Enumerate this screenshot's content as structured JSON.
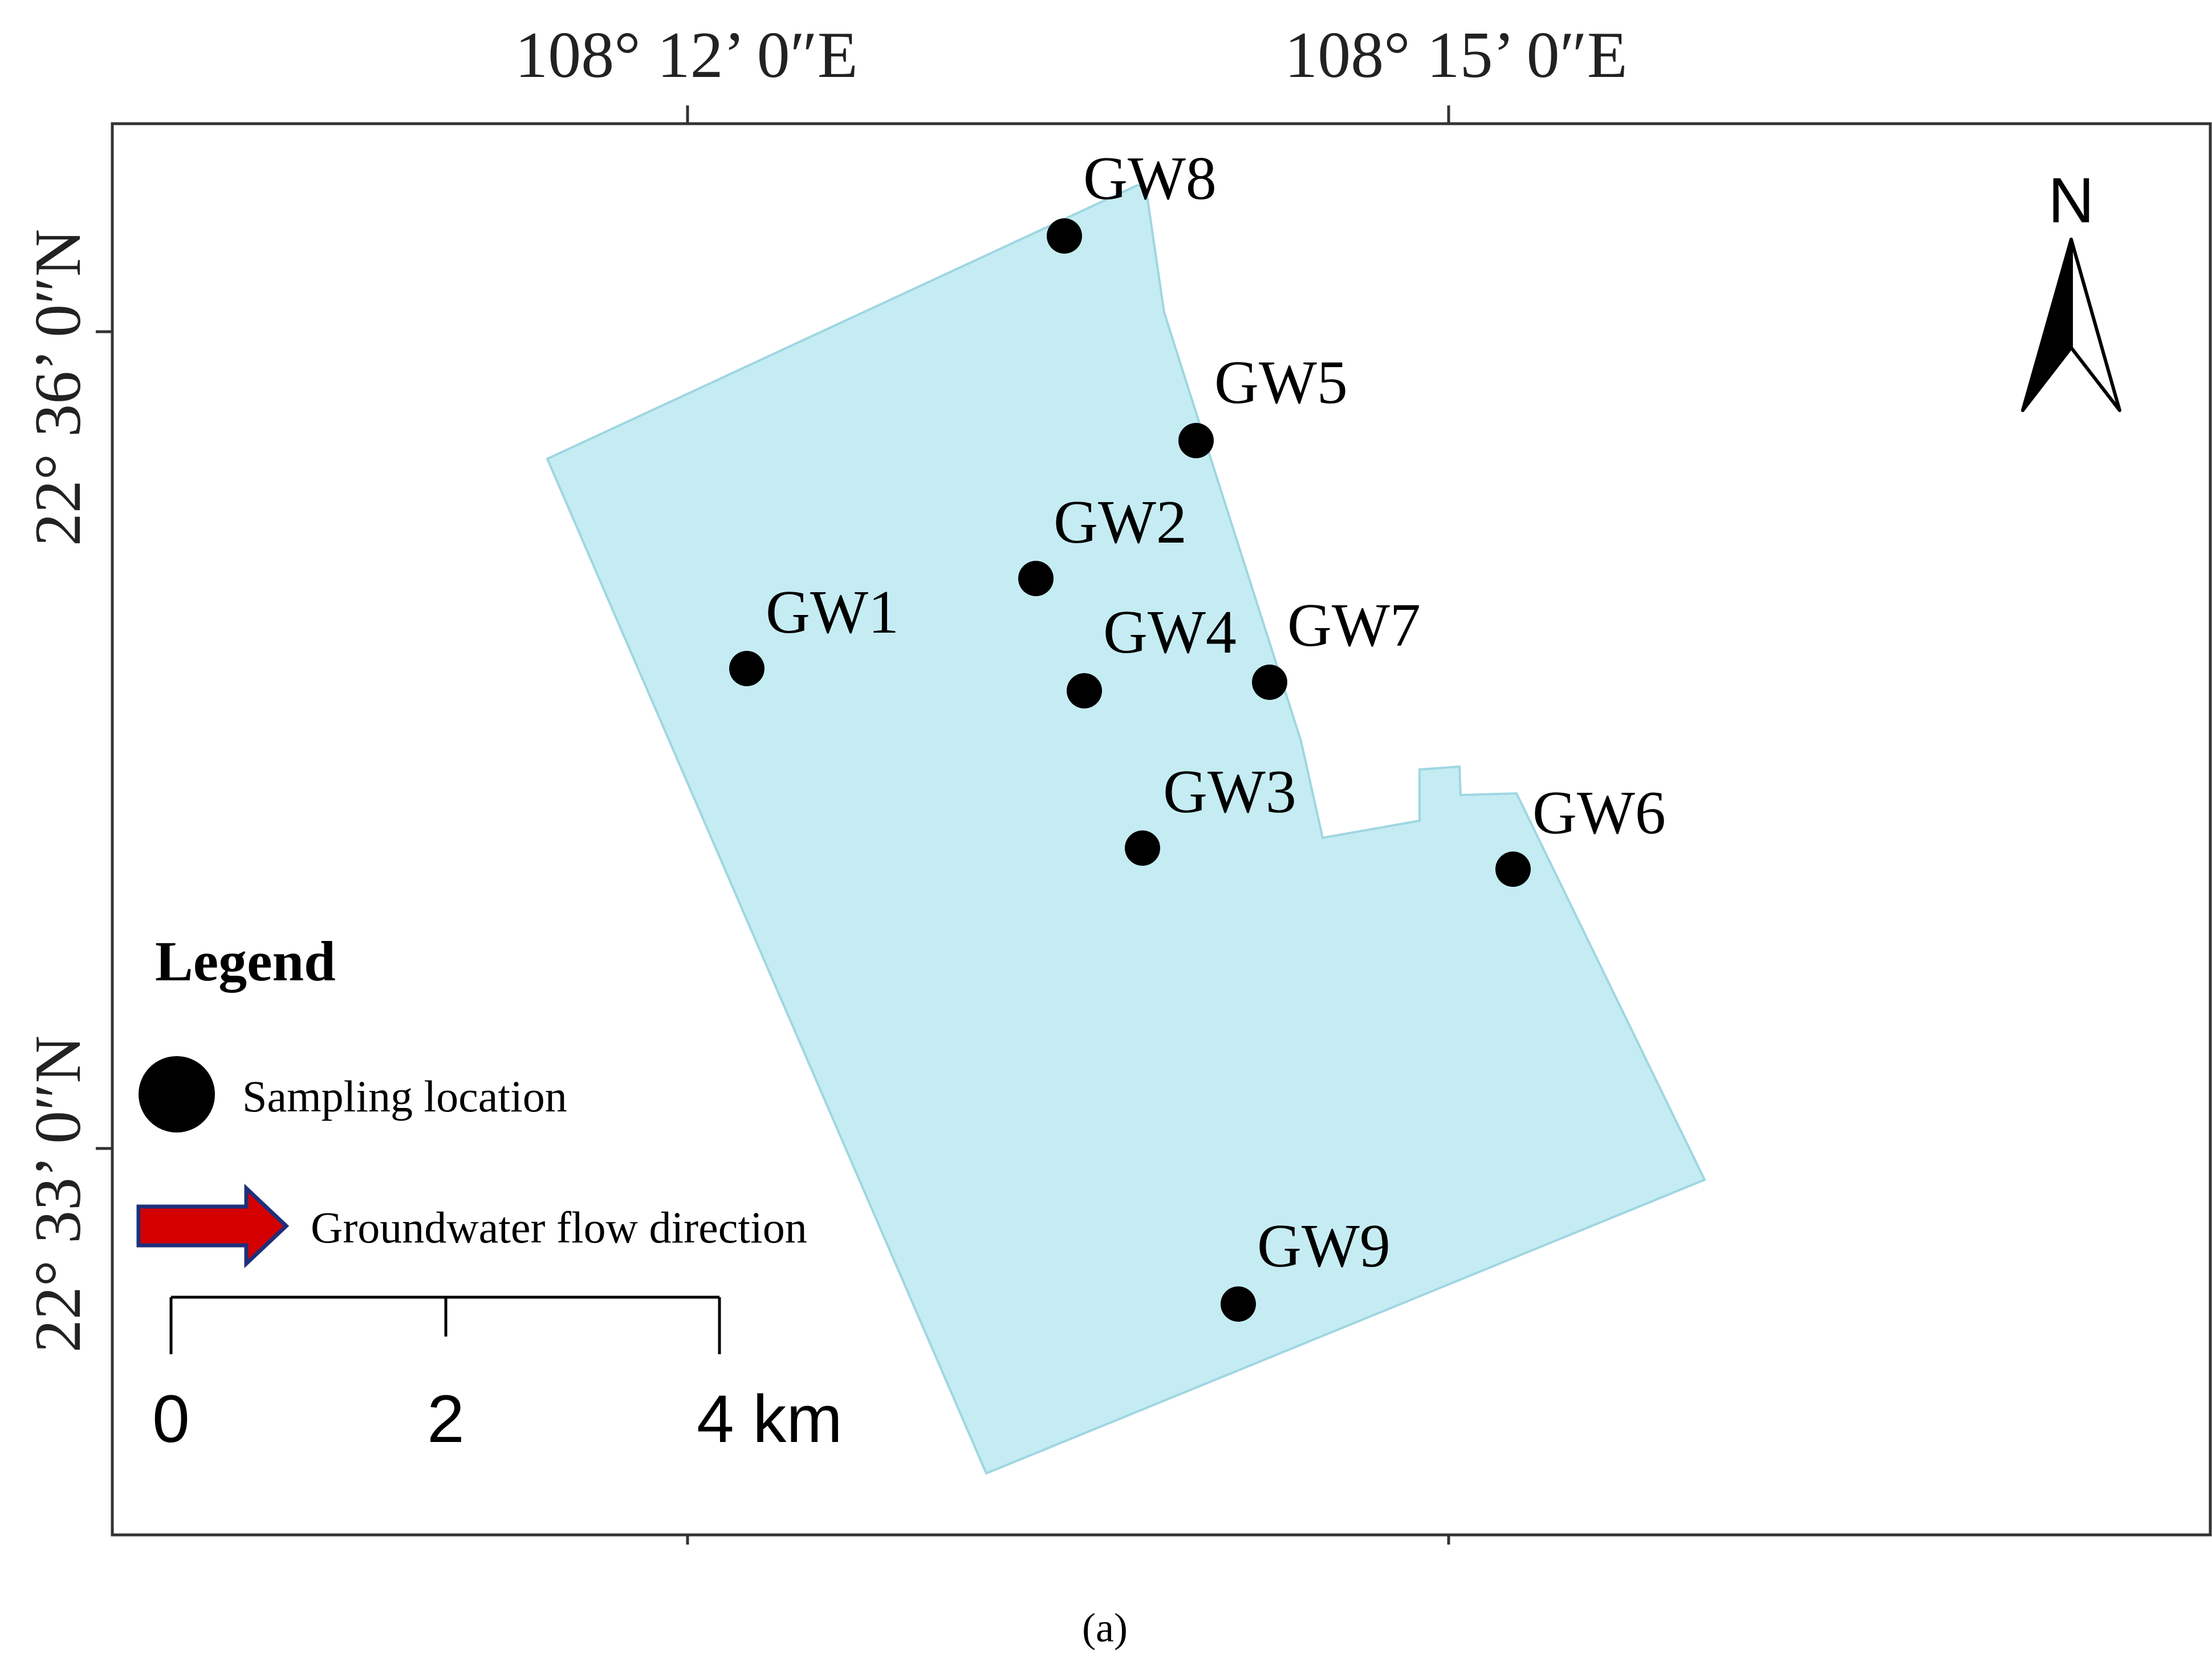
{
  "map": {
    "top_labels": [
      "108°  12’ 0″E",
      "108°  15’ 0″E"
    ],
    "left_labels": [
      "22°  36’ 0″N",
      "22°  33’ 0″N"
    ],
    "study_area_color": "#c5ecf3",
    "study_area_border": "#9fd6e2",
    "sampling_points": [
      {
        "id": "GW1"
      },
      {
        "id": "GW2"
      },
      {
        "id": "GW3"
      },
      {
        "id": "GW4"
      },
      {
        "id": "GW5"
      },
      {
        "id": "GW6"
      },
      {
        "id": "GW7"
      },
      {
        "id": "GW8"
      },
      {
        "id": "GW9"
      }
    ],
    "north_arrow": {
      "label": "N",
      "icon": "north-arrow-icon"
    }
  },
  "legend": {
    "title": "Legend",
    "sampling_label": "Sampling location",
    "flow_label": "Groundwater flow direction",
    "flow_arrow_color": "#d40000",
    "flow_arrow_border": "#1f2f7a"
  },
  "scale_bar": {
    "ticks": [
      "0",
      "2",
      "4 km"
    ]
  },
  "caption": "(a)"
}
